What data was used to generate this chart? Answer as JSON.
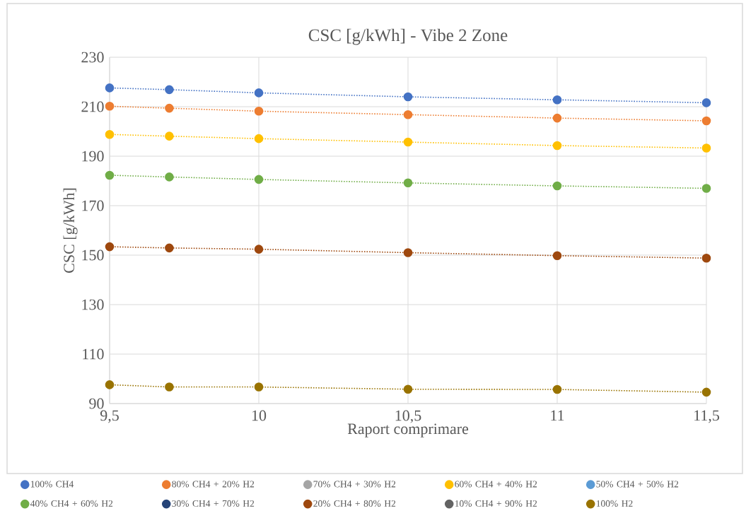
{
  "chart_data": {
    "type": "line",
    "title": "CSC [g/kWh] - Vibe 2 Zone",
    "xlabel": "Raport comprimare",
    "ylabel": "CSC [g/kWh]",
    "x": [
      9.5,
      9.7,
      10,
      10.5,
      11,
      11.5
    ],
    "xlim": [
      9.5,
      11.5
    ],
    "xticks": [
      {
        "value": 9.5,
        "label": "9,5"
      },
      10,
      {
        "value": 10.5,
        "label": "10,5"
      },
      11,
      {
        "value": 11.5,
        "label": "11,5"
      }
    ],
    "ylim": [
      90,
      230
    ],
    "yticks": [
      90,
      110,
      130,
      150,
      170,
      190,
      210,
      230
    ],
    "grid": true,
    "legend": "bottom",
    "marker": "circle",
    "line_style": "dotted",
    "series": [
      {
        "name": "100% CH4",
        "color": "#4472c4",
        "values": [
          217.6,
          216.9,
          215.6,
          214.0,
          212.8,
          211.6
        ]
      },
      {
        "name": "80% CH4 + 20% H2",
        "color": "#ed7d31",
        "values": [
          210.2,
          209.4,
          208.2,
          206.8,
          205.4,
          204.3
        ]
      },
      {
        "name": "70% CH4 + 30% H2",
        "color": "#a5a5a5",
        "values": [
          null,
          null,
          null,
          null,
          null,
          null
        ]
      },
      {
        "name": "60% CH4 + 40% H2",
        "color": "#ffc000",
        "values": [
          198.8,
          198.1,
          197.1,
          195.7,
          194.3,
          193.3
        ]
      },
      {
        "name": "50% CH4 + 50% H2",
        "color": "#5b9bd5",
        "values": [
          null,
          null,
          null,
          null,
          null,
          null
        ]
      },
      {
        "name": "40% CH4 + 60% H2",
        "color": "#70ad47",
        "values": [
          182.3,
          181.6,
          180.6,
          179.2,
          178.0,
          177.0
        ]
      },
      {
        "name": "30% CH4 + 70% H2",
        "color": "#264478",
        "values": [
          null,
          null,
          null,
          null,
          null,
          null
        ]
      },
      {
        "name": "20% CH4 + 80% H2",
        "color": "#9e480e",
        "values": [
          153.4,
          152.9,
          152.4,
          151.0,
          149.8,
          148.8
        ]
      },
      {
        "name": "10% CH4 + 90% H2",
        "color": "#636363",
        "values": [
          null,
          null,
          null,
          null,
          null,
          null
        ]
      },
      {
        "name": "100% H2",
        "color": "#997300",
        "values": [
          97.6,
          96.7,
          96.7,
          95.8,
          95.7,
          94.6
        ]
      }
    ]
  }
}
